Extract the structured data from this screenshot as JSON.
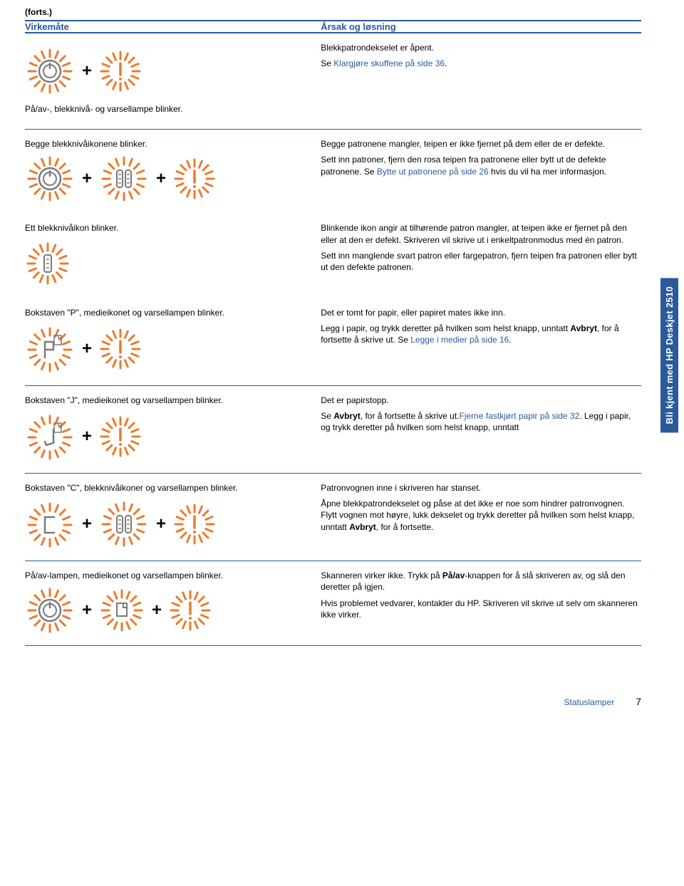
{
  "colors": {
    "accent": "#2a5a9a",
    "icon_orange": "#ec7b2d",
    "icon_gray": "#7a7a7a",
    "text": "#000000",
    "bg": "#ffffff"
  },
  "forts": "(forts.)",
  "header": {
    "left": "Virkemåte",
    "right": "Årsak og løsning"
  },
  "sidebar": "Bli kjent med HP Deskjet 2510",
  "footer": {
    "label": "Statuslamper",
    "page": "7"
  },
  "rows": [
    {
      "left_text": "På/av-, blekknivå- og varsellampe blinker.",
      "right_paras": [
        {
          "plain": "Blekkpatrondekselet er åpent."
        },
        {
          "pre": "Se ",
          "link": "Klargjøre skuffene på side 36",
          "post": "."
        }
      ],
      "icons": [
        "power",
        "plus",
        "excl"
      ]
    },
    {
      "left_text": "Begge blekknivåikonene blinker.",
      "right_paras": [
        {
          "plain": "Begge patronene mangler, teipen er ikke fjernet på dem eller de er defekte."
        },
        {
          "pre": "Sett inn patroner, fjern den rosa teipen fra patronene eller bytt ut de defekte patronene. Se ",
          "link": "Bytte ut patronene på side 26",
          "post": " hvis du vil ha mer informasjon."
        }
      ],
      "icons": [
        "power",
        "plus",
        "ink2",
        "plus",
        "excl"
      ],
      "no_sep": true
    },
    {
      "left_text": "Ett blekknivåikon blinker.",
      "right_paras": [
        {
          "plain": "Blinkende ikon angir at tilhørende patron mangler, at teipen ikke er fjernet på den eller at den er defekt. Skriveren vil skrive ut i enkeltpatronmodus med én patron."
        },
        {
          "plain": "Sett inn manglende svart patron eller fargepatron, fjern teipen fra patronen eller bytt ut den defekte patronen."
        }
      ],
      "icons": [
        "ink1"
      ],
      "no_sep": true
    },
    {
      "left_text": "Bokstaven \"P\", medieikonet og varsellampen blinker.",
      "right_paras": [
        {
          "plain": "Det er tomt for papir, eller papiret mates ikke inn."
        },
        {
          "pre": "Legg i papir, og trykk deretter på hvilken som helst knapp, unntatt ",
          "bold": "Avbryt",
          "post2": ", for å fortsette å skrive ut. Se ",
          "link": "Legge i medier på side 16",
          "post": "."
        }
      ],
      "icons": [
        "p",
        "plus",
        "excl"
      ]
    },
    {
      "left_text": "Bokstaven \"J\", medieikonet og varsellampen blinker.",
      "right_paras": [
        {
          "plain": "Det er papirstopp."
        },
        {
          "pre": "Se ",
          "link": "Fjerne fastkjørt papir på side 32",
          "post": ". Legg i papir, og trykk deretter på hvilken som helst knapp, unntatt ",
          "bold": "Avbryt",
          "post2": ", for å fortsette å skrive ut."
        }
      ],
      "icons": [
        "j",
        "plus",
        "excl"
      ]
    },
    {
      "left_text": "Bokstaven \"C\", blekknivåikoner og varsellampen blinker.",
      "right_paras": [
        {
          "plain": "Patronvognen inne i skriveren har stanset."
        },
        {
          "pre": "Åpne blekkpatrondekselet og påse at det ikke er noe som hindrer patronvognen. Flytt vognen mot høyre, lukk dekselet og trykk deretter på hvilken som helst knapp, unntatt ",
          "bold": "Avbryt",
          "post2": ", for å fortsette."
        }
      ],
      "icons": [
        "c",
        "plus",
        "ink2",
        "plus",
        "excl"
      ]
    },
    {
      "left_text": "På/av-lampen, medieikonet og varsellampen blinker.",
      "right_paras": [
        {
          "pre": "Skanneren virker ikke. Trykk på ",
          "bold": "På/av",
          "post2": "-knappen for å slå skriveren av, og slå den deretter på igjen."
        },
        {
          "plain": "Hvis problemet vedvarer, kontakter du HP. Skriveren vil skrive ut selv om skanneren ikke virker."
        }
      ],
      "icons": [
        "power",
        "plus",
        "media",
        "plus",
        "excl"
      ]
    }
  ]
}
